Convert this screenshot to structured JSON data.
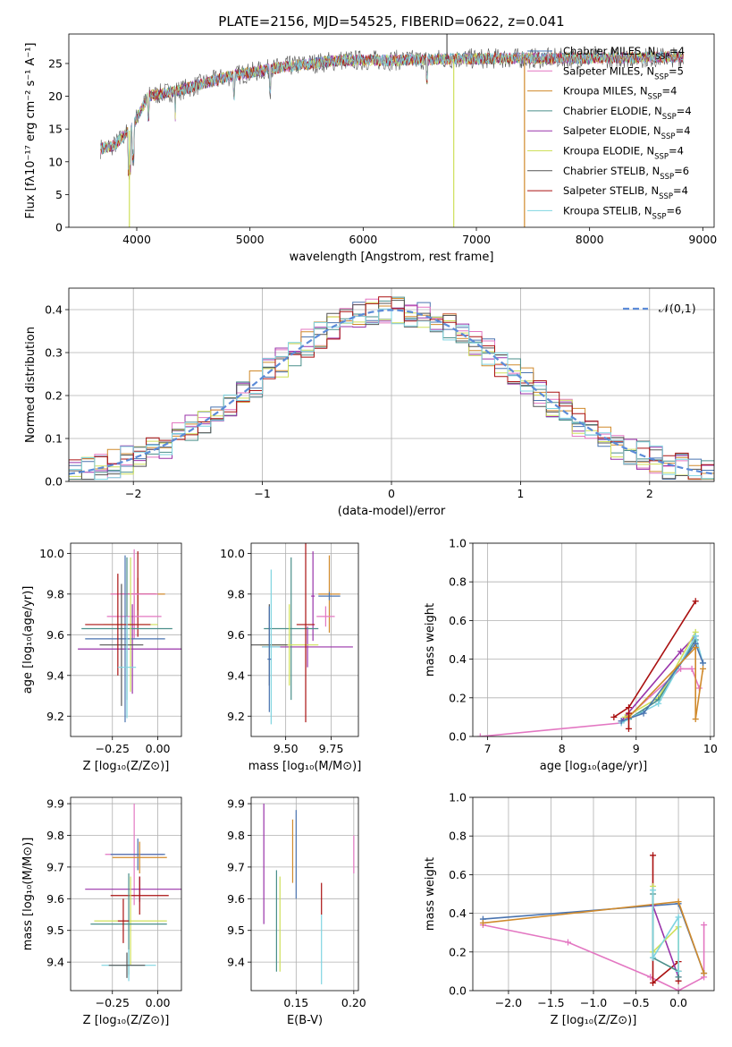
{
  "title": "PLATE=2156, MJD=54525, FIBERID=0622, z=0.041",
  "chart_data": [
    {
      "type": "line",
      "panel": "spectrum",
      "xlabel": "wavelength [Angstrom, rest frame]",
      "ylabel": "Flux [fλ10⁻¹⁷ erg cm⁻² s⁻¹ A⁻¹]",
      "xlim": [
        3400,
        9100
      ],
      "ylim": [
        0,
        29.5
      ],
      "xticks": [
        4000,
        5000,
        6000,
        7000,
        8000,
        9000
      ],
      "yticks": [
        0,
        5,
        10,
        15,
        20,
        25
      ],
      "legend_position": "upper-right",
      "data_range": [
        3680,
        8830
      ],
      "series": [
        {
          "name": "Chabrier MILES, N_SSP=4",
          "color": "#4a74b0"
        },
        {
          "name": "Salpeter MILES, N_SSP=5",
          "color": "#e377c2"
        },
        {
          "name": "Kroupa MILES, N_SSP=4",
          "color": "#d08a2c"
        },
        {
          "name": "Chabrier ELODIE, N_SSP=4",
          "color": "#4a8f8a"
        },
        {
          "name": "Salpeter ELODIE, N_SSP=4",
          "color": "#9933aa"
        },
        {
          "name": "Kroupa ELODIE, N_SSP=4",
          "color": "#cfe05a"
        },
        {
          "name": "Chabrier STELIB, N_SSP=6",
          "color": "#555555"
        },
        {
          "name": "Salpeter STELIB, N_SSP=4",
          "color": "#aa1111"
        },
        {
          "name": "Kroupa STELIB, N_SSP=6",
          "color": "#7fd4e0"
        }
      ],
      "continuum": {
        "x": [
          3680,
          3800,
          3950,
          4100,
          4400,
          4800,
          5300,
          5800,
          6300,
          6800,
          7400,
          8000,
          8830
        ],
        "y": [
          12,
          12.5,
          15,
          20,
          21,
          23,
          24.5,
          25.5,
          25.5,
          25.7,
          25.8,
          25.8,
          26
        ]
      },
      "spikes": [
        {
          "x": 3935,
          "y": 0,
          "color": "#cfe05a"
        },
        {
          "x": 6800,
          "y": 0,
          "color": "#cfe05a"
        },
        {
          "x": 7425,
          "y": 0,
          "color": "#d08a2c"
        },
        {
          "x": 6740,
          "y": 29.5,
          "color": "#555555"
        }
      ]
    },
    {
      "type": "step",
      "panel": "residual-histogram",
      "xlabel": "(data-model)/error",
      "ylabel": "Normed distribution",
      "xlim": [
        -2.5,
        2.5
      ],
      "ylim": [
        0,
        0.45
      ],
      "xticks": [
        -2,
        -1,
        0,
        1,
        2
      ],
      "yticks": [
        0.0,
        0.1,
        0.2,
        0.3,
        0.4
      ],
      "grid": true,
      "legend": "𝒩(0,1)",
      "legend_position": "upper-right",
      "reference": {
        "name": "𝒩(0,1)",
        "mean": 0,
        "sigma": 1,
        "color": "#5b8bd8",
        "style": "dashed"
      },
      "series_colors": [
        "#4a74b0",
        "#e377c2",
        "#d08a2c",
        "#4a8f8a",
        "#9933aa",
        "#cfe05a",
        "#555555",
        "#aa1111",
        "#7fd4e0"
      ]
    },
    {
      "type": "errorbar",
      "panel": "age-vs-Z",
      "xlabel": "Z [log₁₀(Z/Z⊙)]",
      "ylabel": "age  [log₁₀(age/yr)]",
      "xlim": [
        -0.48,
        0.13
      ],
      "ylim": [
        9.1,
        10.05
      ],
      "xticks": [
        -0.25,
        0.0
      ],
      "yticks": [
        9.2,
        9.4,
        9.6,
        9.8,
        10.0
      ],
      "grid": true,
      "points": [
        {
          "x": -0.11,
          "y": 9.8,
          "xerr": 0.15,
          "yerr": 0.08,
          "color": "#d08a2c"
        },
        {
          "x": -0.11,
          "y": 9.8,
          "xerr": 0.1,
          "yerr": 0.21,
          "color": "#aa1111"
        },
        {
          "x": -0.13,
          "y": 9.8,
          "xerr": 0.13,
          "yerr": 0.22,
          "color": "#e377c2"
        },
        {
          "x": -0.13,
          "y": 9.69,
          "xerr": 0.15,
          "yerr": 0.1,
          "color": "#e377c2"
        },
        {
          "x": -0.14,
          "y": 9.53,
          "xerr": 0.3,
          "yerr": 0.22,
          "color": "#9933aa"
        },
        {
          "x": -0.17,
          "y": 9.63,
          "xerr": 0.25,
          "yerr": 0.35,
          "color": "#4a8f8a"
        },
        {
          "x": -0.18,
          "y": 9.58,
          "xerr": 0.22,
          "yerr": 0.41,
          "color": "#4a74b0"
        },
        {
          "x": -0.15,
          "y": 9.65,
          "xerr": 0.15,
          "yerr": 0.33,
          "color": "#cfe05a"
        },
        {
          "x": -0.2,
          "y": 9.55,
          "xerr": 0.12,
          "yerr": 0.3,
          "color": "#555555"
        },
        {
          "x": -0.22,
          "y": 9.65,
          "xerr": 0.18,
          "yerr": 0.25,
          "color": "#aa1111"
        },
        {
          "x": -0.17,
          "y": 9.44,
          "xerr": 0.05,
          "yerr": 0.25,
          "color": "#7fd4e0"
        }
      ]
    },
    {
      "type": "errorbar",
      "panel": "age-vs-mass",
      "xlabel": "mass [log₁₀(M/M⊙)]",
      "ylabel": "",
      "xlim": [
        9.31,
        9.9
      ],
      "ylim": [
        9.1,
        10.05
      ],
      "xticks": [
        9.5,
        9.75
      ],
      "yticks": [
        9.2,
        9.4,
        9.6,
        9.8,
        10.0
      ],
      "grid": true,
      "points": [
        {
          "x": 9.74,
          "y": 9.8,
          "xerr": 0.06,
          "yerr": 0.19,
          "color": "#d08a2c"
        },
        {
          "x": 9.74,
          "y": 9.79,
          "xerr": 0.06,
          "yerr": 0.02,
          "color": "#4a74b0"
        },
        {
          "x": 9.65,
          "y": 9.79,
          "xerr": 0.01,
          "yerr": 0.22,
          "color": "#9933aa"
        },
        {
          "x": 9.72,
          "y": 9.69,
          "xerr": 0.05,
          "yerr": 0.05,
          "color": "#e377c2"
        },
        {
          "x": 9.62,
          "y": 9.54,
          "xerr": 0.25,
          "yerr": 0.1,
          "color": "#9933aa"
        },
        {
          "x": 9.53,
          "y": 9.63,
          "xerr": 0.15,
          "yerr": 0.35,
          "color": "#4a8f8a"
        },
        {
          "x": 9.52,
          "y": 9.55,
          "xerr": 0.16,
          "yerr": 0.2,
          "color": "#cfe05a"
        },
        {
          "x": 9.61,
          "y": 9.65,
          "xerr": 0.05,
          "yerr": 0.48,
          "color": "#aa1111"
        },
        {
          "x": 9.41,
          "y": 9.55,
          "xerr": 0.1,
          "yerr": 0.2,
          "color": "#555555"
        },
        {
          "x": 9.42,
          "y": 9.54,
          "xerr": 0.05,
          "yerr": 0.38,
          "color": "#7fd4e0"
        },
        {
          "x": 9.41,
          "y": 9.48,
          "xerr": 0.01,
          "yerr": 0.26,
          "color": "#4a74b0"
        }
      ]
    },
    {
      "type": "line",
      "panel": "mass-weight-vs-age",
      "xlabel": "age  [log₁₀(age/yr)]",
      "ylabel": "mass weight",
      "xlim": [
        6.8,
        10.05
      ],
      "ylim": [
        0,
        1
      ],
      "xticks": [
        7,
        8,
        9,
        10
      ],
      "yticks": [
        0.0,
        0.2,
        0.4,
        0.6,
        0.8,
        1.0
      ],
      "grid": true,
      "series": [
        {
          "color": "#e377c2",
          "x": [
            6.9,
            8.8,
            9.6,
            9.75,
            9.85
          ],
          "y": [
            0.0,
            0.07,
            0.35,
            0.35,
            0.25
          ]
        },
        {
          "color": "#aa1111",
          "x": [
            8.7,
            8.9,
            9.8
          ],
          "y": [
            0.1,
            0.15,
            0.7
          ]
        },
        {
          "color": "#9933aa",
          "x": [
            8.8,
            9.6,
            9.8
          ],
          "y": [
            0.08,
            0.44,
            0.52
          ]
        },
        {
          "color": "#cfe05a",
          "x": [
            8.85,
            9.3,
            9.8
          ],
          "y": [
            0.1,
            0.2,
            0.54
          ]
        },
        {
          "color": "#4a8f8a",
          "x": [
            8.9,
            9.3,
            9.8
          ],
          "y": [
            0.09,
            0.19,
            0.5
          ]
        },
        {
          "color": "#7fd4e0",
          "x": [
            8.8,
            9.3,
            9.8,
            9.9
          ],
          "y": [
            0.07,
            0.17,
            0.52,
            0.38
          ]
        },
        {
          "color": "#4a74b0",
          "x": [
            8.8,
            9.1,
            9.8,
            9.9
          ],
          "y": [
            0.08,
            0.12,
            0.48,
            0.38
          ]
        },
        {
          "color": "#d08a2c",
          "x": [
            8.9,
            9.8,
            9.8,
            9.9
          ],
          "y": [
            0.1,
            0.46,
            0.09,
            0.35
          ]
        },
        {
          "color": "#aa1111",
          "x": [
            8.9,
            8.9
          ],
          "y": [
            0.04,
            0.12
          ]
        }
      ]
    },
    {
      "type": "errorbar",
      "panel": "mass-vs-Z",
      "xlabel": "Z [log₁₀(Z/Z⊙)]",
      "ylabel": "mass [log₁₀(M/M⊙)]",
      "xlim": [
        -0.48,
        0.13
      ],
      "ylim": [
        9.31,
        9.92
      ],
      "xticks": [
        -0.25,
        0.0
      ],
      "yticks": [
        9.4,
        9.5,
        9.6,
        9.7,
        9.8,
        9.9
      ],
      "grid": true,
      "points": [
        {
          "x": -0.13,
          "y": 9.74,
          "xerr": 0.16,
          "yerr": 0.16,
          "color": "#e377c2"
        },
        {
          "x": -0.11,
          "y": 9.74,
          "xerr": 0.15,
          "yerr": 0.05,
          "color": "#4a74b0"
        },
        {
          "x": -0.1,
          "y": 9.73,
          "xerr": 0.15,
          "yerr": 0.05,
          "color": "#d08a2c"
        },
        {
          "x": -0.1,
          "y": 9.63,
          "xerr": 0.3,
          "yerr": 0.04,
          "color": "#9933aa"
        },
        {
          "x": -0.1,
          "y": 9.61,
          "xerr": 0.16,
          "yerr": 0.06,
          "color": "#aa1111"
        },
        {
          "x": -0.15,
          "y": 9.53,
          "xerr": 0.2,
          "yerr": 0.14,
          "color": "#cfe05a"
        },
        {
          "x": -0.16,
          "y": 9.52,
          "xerr": 0.21,
          "yerr": 0.16,
          "color": "#4a8f8a"
        },
        {
          "x": -0.19,
          "y": 9.53,
          "xerr": 0.03,
          "yerr": 0.07,
          "color": "#aa1111"
        },
        {
          "x": -0.16,
          "y": 9.39,
          "xerr": 0.15,
          "yerr": 0.05,
          "color": "#7fd4e0"
        },
        {
          "x": -0.17,
          "y": 9.39,
          "xerr": 0.1,
          "yerr": 0.04,
          "color": "#555555"
        }
      ]
    },
    {
      "type": "errorbar",
      "panel": "mass-vs-EBV",
      "xlabel": "E(B-V)",
      "ylabel": "",
      "xlim": [
        0.111,
        0.204
      ],
      "ylim": [
        9.31,
        9.92
      ],
      "xticks": [
        0.15,
        0.2
      ],
      "yticks": [
        9.4,
        9.5,
        9.6,
        9.7,
        9.8,
        9.9
      ],
      "grid": true,
      "points": [
        {
          "x": 0.122,
          "y": 9.71,
          "xerr": 0,
          "yerr": 0.19,
          "color": "#9933aa"
        },
        {
          "x": 0.133,
          "y": 9.53,
          "xerr": 0,
          "yerr": 0.16,
          "color": "#4a8f8a"
        },
        {
          "x": 0.136,
          "y": 9.52,
          "xerr": 0,
          "yerr": 0.15,
          "color": "#cfe05a"
        },
        {
          "x": 0.147,
          "y": 9.75,
          "xerr": 0,
          "yerr": 0.1,
          "color": "#d08a2c"
        },
        {
          "x": 0.15,
          "y": 9.74,
          "xerr": 0,
          "yerr": 0.14,
          "color": "#4a74b0"
        },
        {
          "x": 0.172,
          "y": 9.6,
          "xerr": 0,
          "yerr": 0.05,
          "color": "#aa1111"
        },
        {
          "x": 0.172,
          "y": 9.44,
          "xerr": 0,
          "yerr": 0.11,
          "color": "#7fd4e0"
        },
        {
          "x": 0.2,
          "y": 9.74,
          "xerr": 0,
          "yerr": 0.06,
          "color": "#e377c2"
        }
      ]
    },
    {
      "type": "line",
      "panel": "mass-weight-vs-Z",
      "xlabel": "Z [log₁₀(Z/Z⊙)]",
      "ylabel": "mass weight",
      "xlim": [
        -2.42,
        0.42
      ],
      "ylim": [
        0,
        1
      ],
      "xticks": [
        -2.0,
        -1.5,
        -1.0,
        -0.5,
        0.0
      ],
      "yticks": [
        0.0,
        0.2,
        0.4,
        0.6,
        0.8,
        1.0
      ],
      "grid": true,
      "series": [
        {
          "color": "#e377c2",
          "x": [
            -2.3,
            -1.3,
            -0.33,
            0.0,
            0.3,
            0.3
          ],
          "y": [
            0.34,
            0.25,
            0.07,
            0.0,
            0.07,
            0.34
          ]
        },
        {
          "color": "#aa1111",
          "x": [
            -0.3,
            -0.3,
            0.0,
            0.0
          ],
          "y": [
            0.7,
            0.04,
            0.15,
            0.05
          ]
        },
        {
          "color": "#4a74b0",
          "x": [
            -2.3,
            0.0,
            0.3
          ],
          "y": [
            0.37,
            0.45,
            0.09
          ]
        },
        {
          "color": "#d08a2c",
          "x": [
            -2.3,
            0.0,
            0.3
          ],
          "y": [
            0.35,
            0.46,
            0.09
          ]
        },
        {
          "color": "#9933aa",
          "x": [
            -0.3,
            0.0,
            0.0
          ],
          "y": [
            0.44,
            0.07,
            0.1
          ]
        },
        {
          "color": "#cfe05a",
          "x": [
            -0.3,
            -0.3,
            0.0,
            0.0
          ],
          "y": [
            0.54,
            0.2,
            0.33,
            0.1
          ]
        },
        {
          "color": "#4a8f8a",
          "x": [
            -0.3,
            -0.3,
            0.0,
            0.0
          ],
          "y": [
            0.5,
            0.17,
            0.1,
            0.07
          ]
        },
        {
          "color": "#7fd4e0",
          "x": [
            -0.3,
            -0.3,
            0.0,
            0.0
          ],
          "y": [
            0.52,
            0.17,
            0.38,
            0.1
          ]
        }
      ]
    }
  ]
}
